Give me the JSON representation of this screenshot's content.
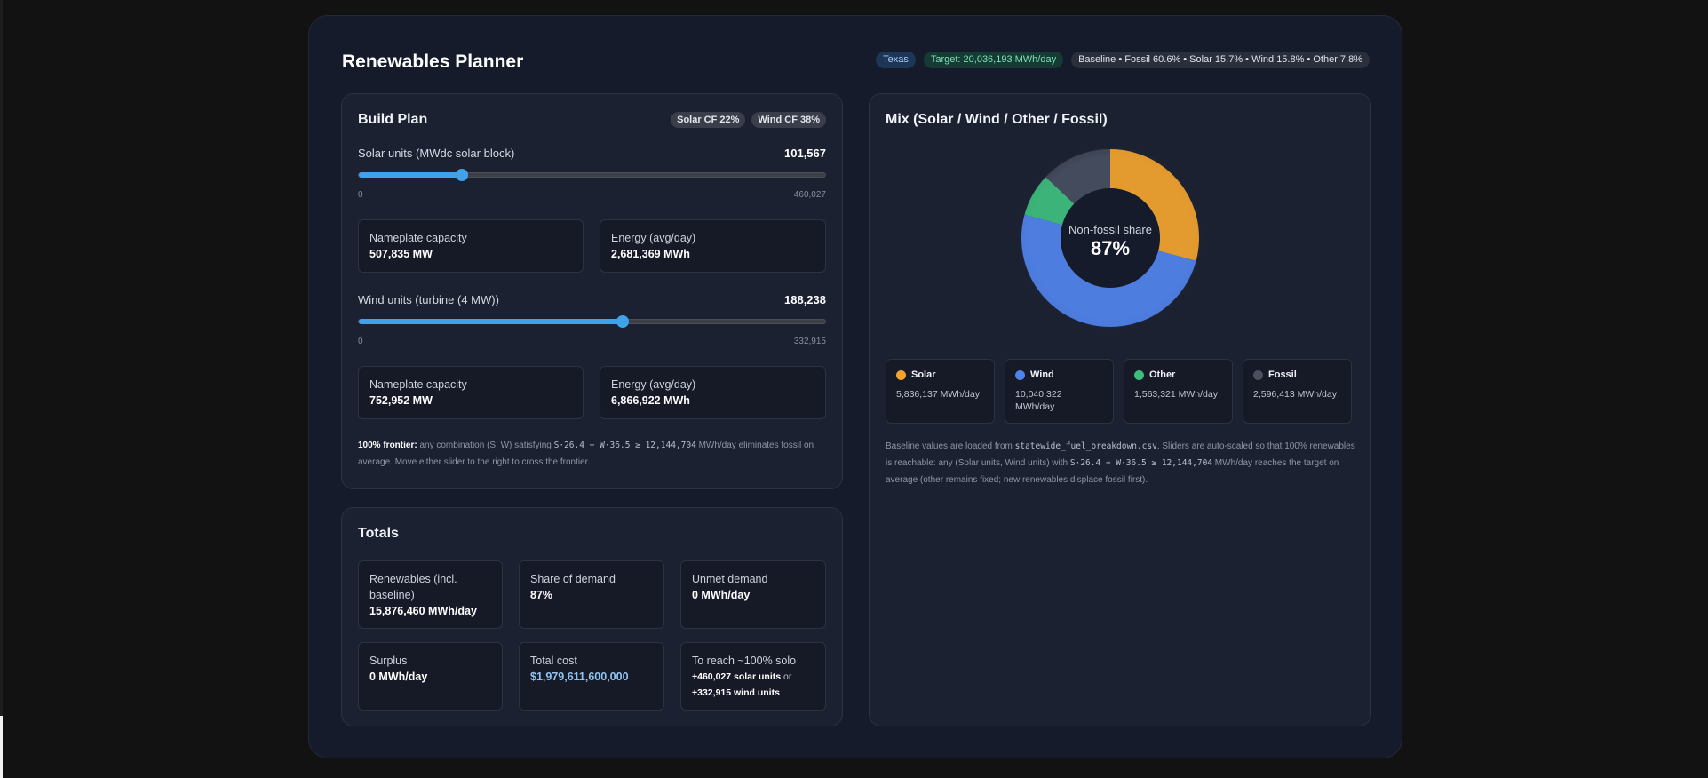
{
  "header": {
    "title": "Renewables Planner",
    "state": "Texas",
    "target": "Target: 20,036,193 MWh/day",
    "baseline": "Baseline • Fossil 60.6% • Solar 15.7% • Wind 15.8% • Other 7.8%"
  },
  "build": {
    "title": "Build Plan",
    "solar_cf": "Solar CF 22%",
    "wind_cf": "Wind CF 38%",
    "solar": {
      "label": "Solar units (MWdc solar block)",
      "value": "101,567",
      "min": "0",
      "max": "460,027",
      "fraction": 0.2208,
      "nameplate_label": "Nameplate capacity",
      "nameplate_value": "507,835 MW",
      "energy_label": "Energy (avg/day)",
      "energy_value": "2,681,369 MWh"
    },
    "wind": {
      "label": "Wind units (turbine (4 MW))",
      "value": "188,238",
      "min": "0",
      "max": "332,915",
      "fraction": 0.5654,
      "nameplate_label": "Nameplate capacity",
      "nameplate_value": "752,952 MW",
      "energy_label": "Energy (avg/day)",
      "energy_value": "6,866,922 MWh"
    },
    "note_bold": "100% frontier:",
    "note_text1": " any combination (S, W) satisfying ",
    "note_code": "S·26.4 + W·36.5 ≥ 12,144,704",
    "note_text2": " MWh/day eliminates fossil on average. Move either slider to the right to cross the frontier."
  },
  "totals": {
    "title": "Totals",
    "renewables_label": "Renewables (incl. baseline)",
    "renewables_value": "15,876,460 MWh/day",
    "share_label": "Share of demand",
    "share_value": "87%",
    "unmet_label": "Unmet demand",
    "unmet_value": "0 MWh/day",
    "surplus_label": "Surplus",
    "surplus_value": "0 MWh/day",
    "cost_label": "Total cost",
    "cost_value": "$1,979,611,600,000",
    "reach_label": "To reach ~100% solo",
    "reach_solar": "+460,027 solar units",
    "reach_or": " or ",
    "reach_wind": "+332,915 wind units"
  },
  "mix": {
    "title": "Mix (Solar / Wind / Other / Fossil)",
    "center_label": "Non-fossil share",
    "center_value": "87%",
    "legend": [
      {
        "name": "Solar",
        "value": "5,836,137 MWh/day",
        "color": "#f2a32d"
      },
      {
        "name": "Wind",
        "value": "10,040,322 MWh/day",
        "color": "#4f82ea"
      },
      {
        "name": "Other",
        "value": "1,563,321 MWh/day",
        "color": "#3dbd7d"
      },
      {
        "name": "Fossil",
        "value": "2,596,413 MWh/day",
        "color": "#4a5060"
      }
    ],
    "note_text1": "Baseline values are loaded from ",
    "note_code1": "statewide_fuel_breakdown.csv",
    "note_text2": ". Sliders are auto-scaled so that 100% renewables is reachable: any (Solar units, Wind units) with ",
    "note_code2": "S·26.4 + W·36.5 ≥ 12,144,704",
    "note_text3": " MWh/day reaches the target on average (other remains fixed; new renewables displace fossil first)."
  },
  "chart_data": {
    "type": "pie",
    "categories": [
      "Solar",
      "Wind",
      "Other",
      "Fossil"
    ],
    "values": [
      5836137,
      10040322,
      1563321,
      2596413
    ],
    "colors": [
      "#f2a32d",
      "#4f82ea",
      "#3dbd7d",
      "#4a5060"
    ],
    "title": "Mix (Solar / Wind / Other / Fossil)"
  }
}
